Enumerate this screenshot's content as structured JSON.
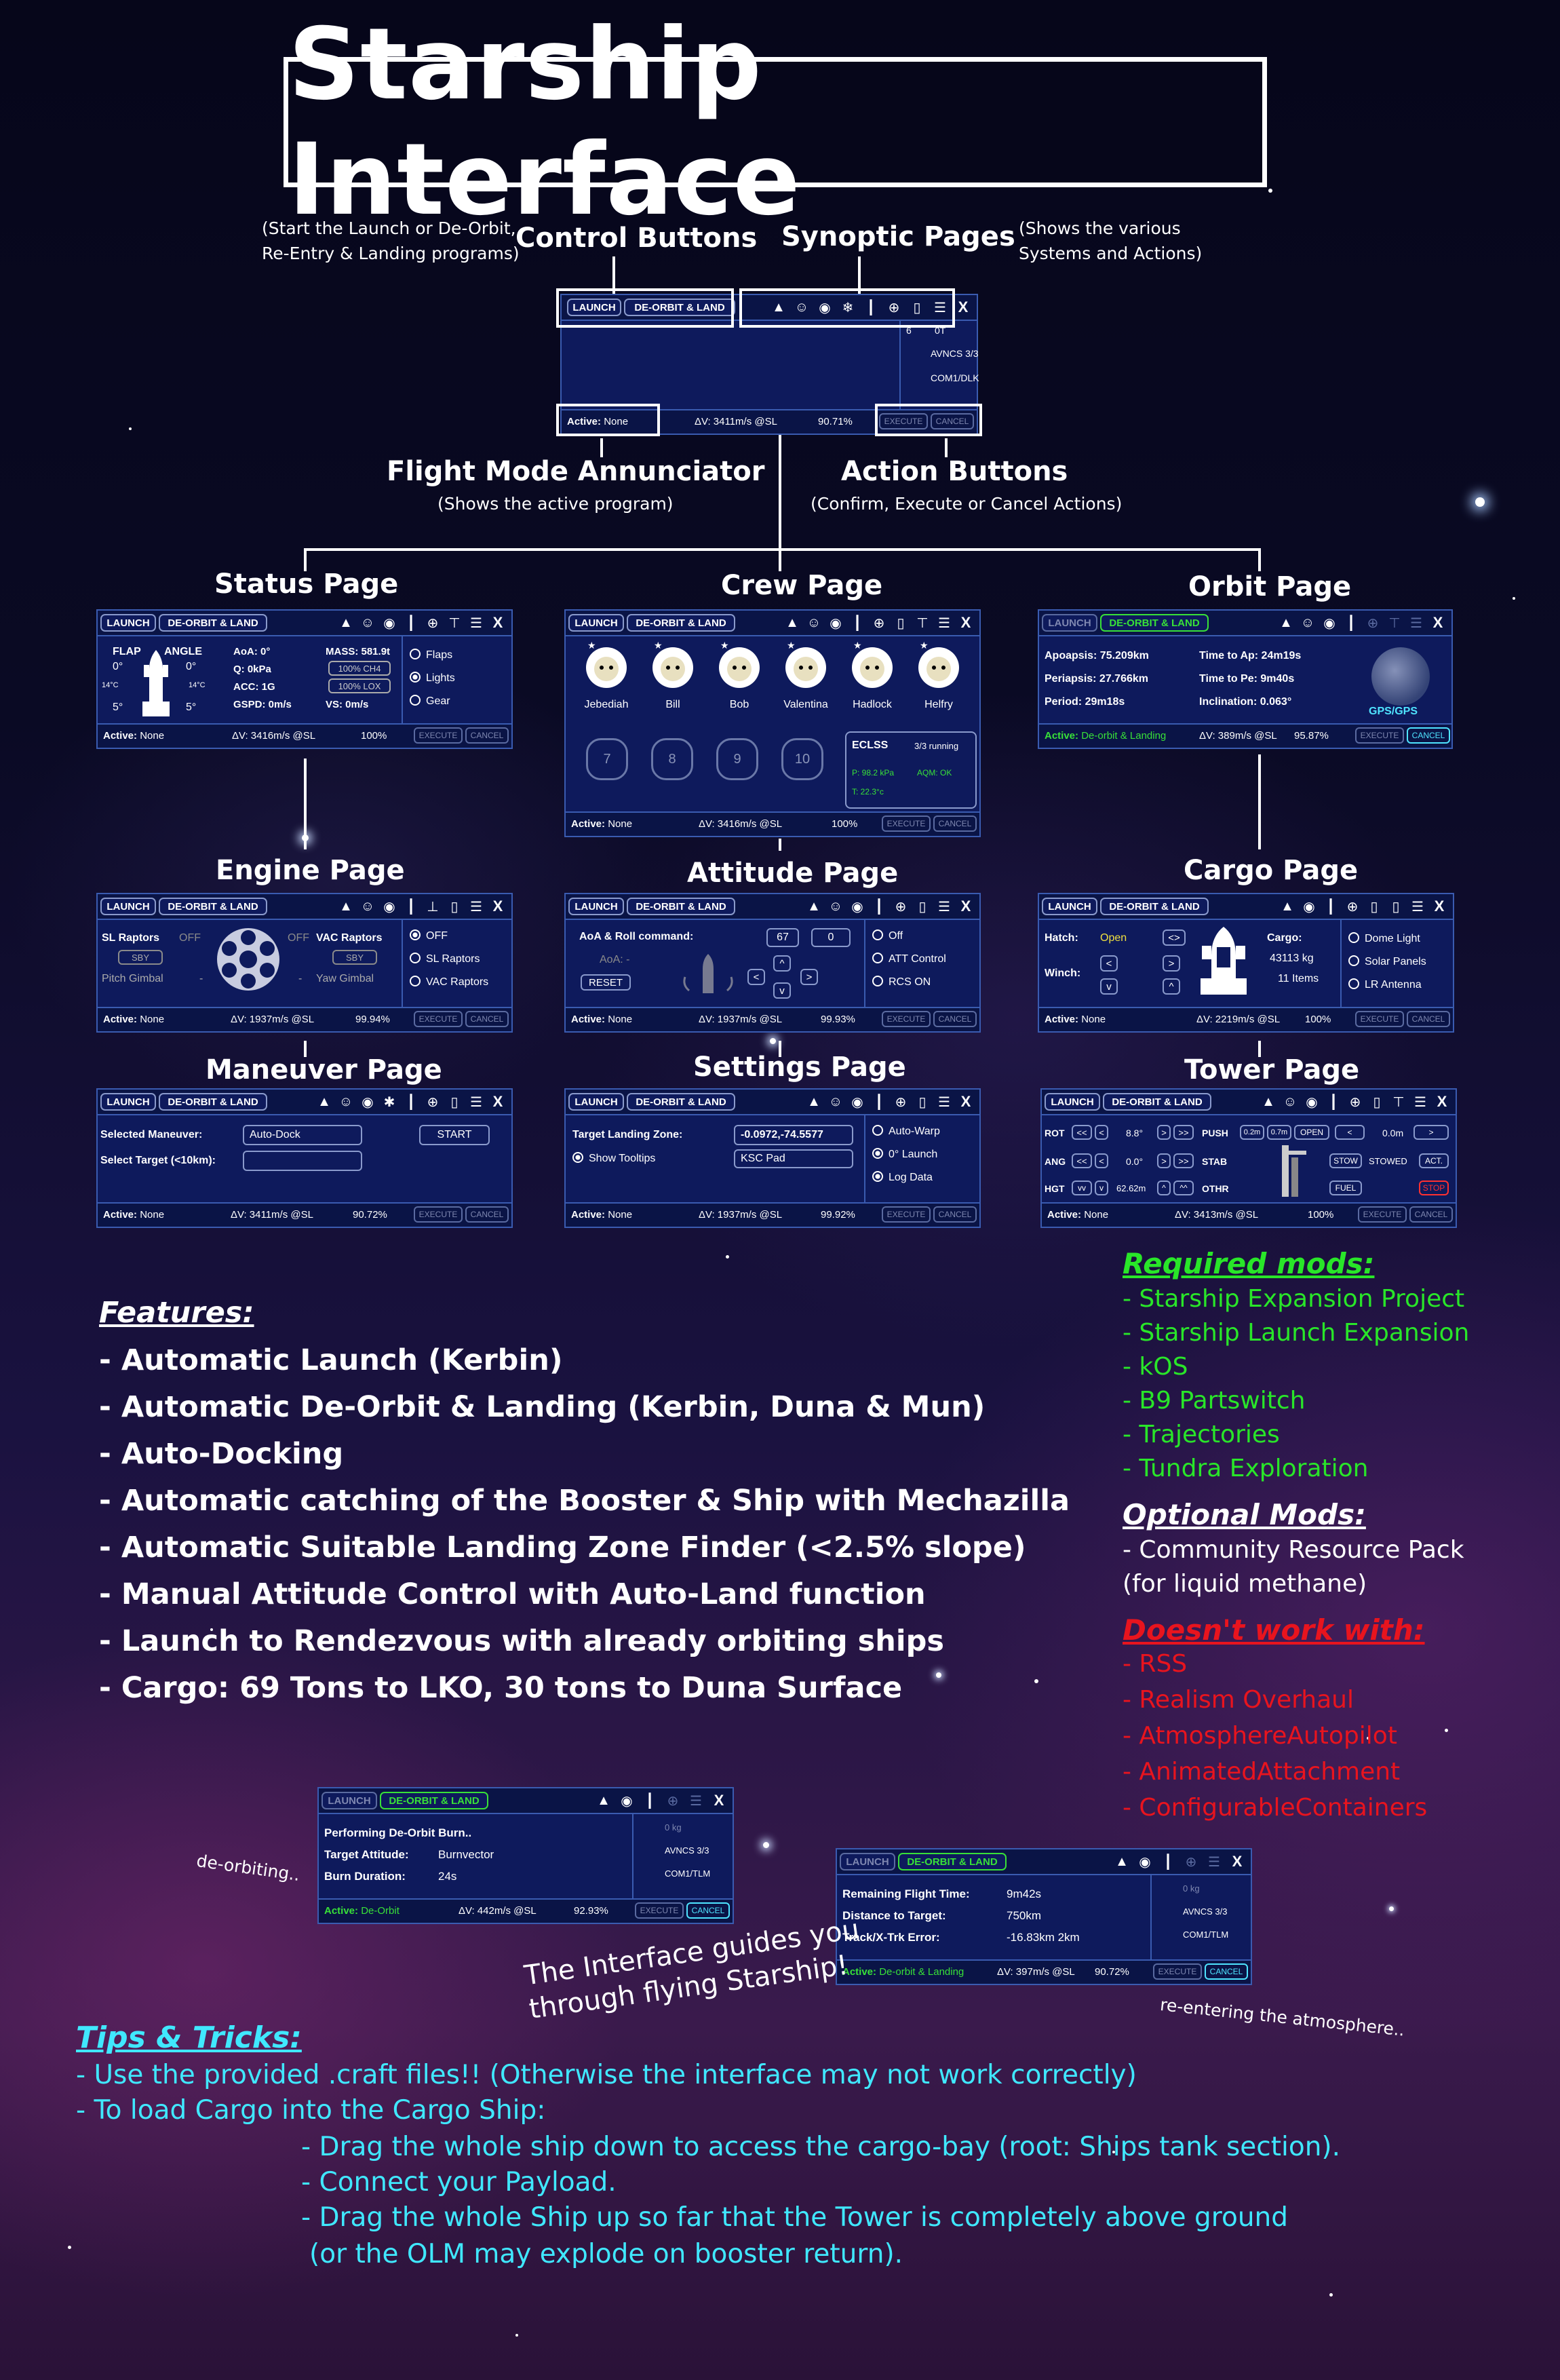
{
  "title": "Starship Interface",
  "overview": {
    "control_buttons": "Control Buttons",
    "control_note": "(Start the Launch or De-Orbit,\nRe-Entry & Landing programs)",
    "synoptic_pages": "Synoptic Pages",
    "synoptic_note": "(Shows the various\nSystems and Actions)",
    "fma": "Flight Mode Annunciator",
    "fma_note": "(Shows the active program)",
    "action_buttons": "Action Buttons",
    "action_note": "(Confirm, Execute or Cancel Actions)",
    "panel": {
      "launch": "LAUNCH",
      "deorbit": "DE-ORBIT & LAND",
      "side": [
        "6",
        "0T",
        "AVNCS 3/3",
        "COM1/DLK"
      ],
      "active_label": "Active:",
      "active_value": "None",
      "dv": "ΔV: 3411m/s @SL",
      "pct": "90.71%",
      "execute": "EXECUTE",
      "cancel": "CANCEL"
    }
  },
  "common": {
    "launch": "LAUNCH",
    "deorbit": "DE-ORBIT & LAND",
    "execute": "EXECUTE",
    "cancel": "CANCEL",
    "active_label": "Active:",
    "none": "None",
    "close": "X"
  },
  "pages": {
    "status": {
      "label": "Status Page",
      "flap": "FLAP",
      "angle": "ANGLE",
      "f1": "0°",
      "f2": "0°",
      "f3": "5°",
      "f4": "5°",
      "temp1": "14°C",
      "temp2": "14°C",
      "aoa": "AoA: 0°",
      "q": "Q: 0kPa",
      "acc": "ACC: 1G",
      "gspd": "GSPD: 0m/s",
      "mass": "MASS: 581.9t",
      "ch4": "100% CH4",
      "lox": "100% LOX",
      "vs": "VS: 0m/s",
      "options": [
        "Flaps",
        "Lights",
        "Gear"
      ],
      "dv": "ΔV: 3416m/s @SL",
      "pct": "100%"
    },
    "crew": {
      "label": "Crew Page",
      "names": [
        "Jebediah",
        "Bill",
        "Bob",
        "Valentina",
        "Hadlock",
        "Helfry"
      ],
      "seats": [
        "7",
        "8",
        "9",
        "10"
      ],
      "eclss": "ECLSS",
      "running": "3/3 running",
      "p": "P: 98.2 kPa",
      "aqm": "AQM: OK",
      "temp": "T: 22.3°c",
      "dv": "ΔV: 3416m/s @SL",
      "pct": "100%"
    },
    "orbit": {
      "label": "Orbit Page",
      "apo": "Apoapsis: 75.209km",
      "peri": "Periapsis: 27.766km",
      "period": "Period: 29m18s",
      "tap": "Time to Ap: 24m19s",
      "tpe": "Time to Pe: 9m40s",
      "inc": "Inclination: 0.063°",
      "gps": "GPS/GPS",
      "active_value": "De-orbit & Landing",
      "dv": "ΔV: 389m/s @SL",
      "pct": "95.87%"
    },
    "engine": {
      "label": "Engine Page",
      "sl": "SL Raptors",
      "off1": "OFF",
      "off2": "OFF",
      "vac": "VAC Raptors",
      "sby1": "SBY",
      "sby2": "SBY",
      "pitch": "Pitch Gimbal",
      "yaw": "Yaw Gimbal",
      "dash1": "-",
      "dash2": "-",
      "options": [
        "OFF",
        "SL Raptors",
        "VAC Raptors"
      ],
      "dv": "ΔV: 1937m/s @SL",
      "pct": "99.94%"
    },
    "attitude": {
      "label": "Attitude Page",
      "cmd": "AoA & Roll command:",
      "v1": "67",
      "v2": "0",
      "aoa": "AoA: -",
      "reset": "RESET",
      "options": [
        "Off",
        "ATT Control",
        "RCS ON"
      ],
      "dv": "ΔV: 1937m/s @SL",
      "pct": "99.93%"
    },
    "cargo": {
      "label": "Cargo Page",
      "hatch": "Hatch:",
      "open": "Open",
      "winch": "Winch:",
      "cargo": "Cargo:",
      "mass": "43113 kg",
      "items": "11 Items",
      "options": [
        "Dome Light",
        "Solar Panels",
        "LR Antenna"
      ],
      "dv": "ΔV: 2219m/s @SL",
      "pct": "100%"
    },
    "maneuver": {
      "label": "Maneuver Page",
      "sel": "Selected Maneuver:",
      "auto": "Auto-Dock",
      "start": "START",
      "target": "Select Target (<10km):",
      "dv": "ΔV: 3411m/s @SL",
      "pct": "90.72%"
    },
    "settings": {
      "label": "Settings Page",
      "tlz": "Target Landing Zone:",
      "coords": "-0.0972,-74.5577",
      "tooltips": "Show Tooltips",
      "ksc": "KSC Pad",
      "options": [
        "Auto-Warp",
        "0° Launch",
        "Log Data"
      ],
      "dv": "ΔV: 1937m/s @SL",
      "pct": "99.92%"
    },
    "tower": {
      "label": "Tower Page",
      "rot": "ROT",
      "rotv": "8.8°",
      "ang": "ANG",
      "angv": "0.0°",
      "hgt": "HGT",
      "hgtv": "62.62m",
      "push": "PUSH",
      "p1": "0.2m",
      "p2": "0.7m",
      "open": "OPEN",
      "lt": "<",
      "om": "0.0m",
      "gt": ">",
      "stab": "STAB",
      "stow": "STOW",
      "stowed": "STOWED",
      "act": "ACT.",
      "othr": "OTHR",
      "fuel": "FUEL",
      "stop": "STOP",
      "dv": "ΔV: 3413m/s @SL",
      "pct": "100%"
    }
  },
  "features": {
    "heading": "Features:",
    "items": [
      "- Automatic Launch (Kerbin)",
      "- Automatic De-Orbit & Landing (Kerbin, Duna & Mun)",
      "- Auto-Docking",
      "- Automatic catching of the Booster & Ship with Mechazilla",
      "- Automatic Suitable Landing Zone Finder (<2.5% slope)",
      "- Manual Attitude Control with Auto-Land function",
      "- Launch to Rendezvous with already orbiting ships",
      "- Cargo: 69 Tons to LKO, 30 tons to Duna Surface"
    ]
  },
  "mods": {
    "required_heading": "Required mods:",
    "required": [
      "- Starship Expansion Project",
      "- Starship Launch Expansion",
      "- kOS",
      "- B9 Partswitch",
      "- Trajectories",
      "- Tundra Exploration"
    ],
    "optional_heading": "Optional Mods:",
    "optional": [
      "- Community Resource Pack",
      "(for liquid methane)"
    ],
    "incompatible_heading": "Doesn't work with:",
    "incompatible": [
      "- RSS",
      "- Realism Overhaul",
      "- AtmosphereAutopilot",
      "- AnimatedAttachment",
      "- ConfigurableContainers"
    ],
    "colors": {
      "required": "#29e629",
      "optional": "#ffffff",
      "incompatible": "#e8141e"
    }
  },
  "examples": {
    "deorbit": {
      "caption": "de-orbiting..",
      "l1": "Performing De-Orbit Burn..",
      "l2k": "Target Attitude:",
      "l2v": "Burnvector",
      "l3k": "Burn Duration:",
      "l3v": "24s",
      "side": [
        "0 kg",
        "AVNCS 3/3",
        "COM1/TLM"
      ],
      "active_value": "De-Orbit",
      "dv": "ΔV: 442m/s @SL",
      "pct": "92.93%"
    },
    "reentry": {
      "caption": "re-entering the atmosphere..",
      "l1k": "Remaining Flight Time:",
      "l1v": "9m42s",
      "l2k": "Distance to Target:",
      "l2v": "750km",
      "l3k": "Track/X-Trk Error:",
      "l3v": "-16.83km  2km",
      "side": [
        "0 kg",
        "AVNCS 3/3",
        "COM1/TLM"
      ],
      "active_value": "De-orbit & Landing",
      "dv": "ΔV: 397m/s @SL",
      "pct": "90.72%"
    },
    "guide": "The Interface guides you\nthrough flying Starship!"
  },
  "tips": {
    "heading": "Tips & Tricks:",
    "l1": "- Use the provided .craft files!! (Otherwise the interface may not work correctly)",
    "l2": "- To load Cargo into the Cargo Ship:",
    "l3": "- Drag the whole ship down to access the cargo-bay (root: Ships tank section).",
    "l4": "- Connect your Payload.",
    "l5": "- Drag the whole Ship up so far that the Tower is completely above ground",
    "l6": "(or the OLM may explode on booster return).",
    "color": "#40e8ff"
  }
}
